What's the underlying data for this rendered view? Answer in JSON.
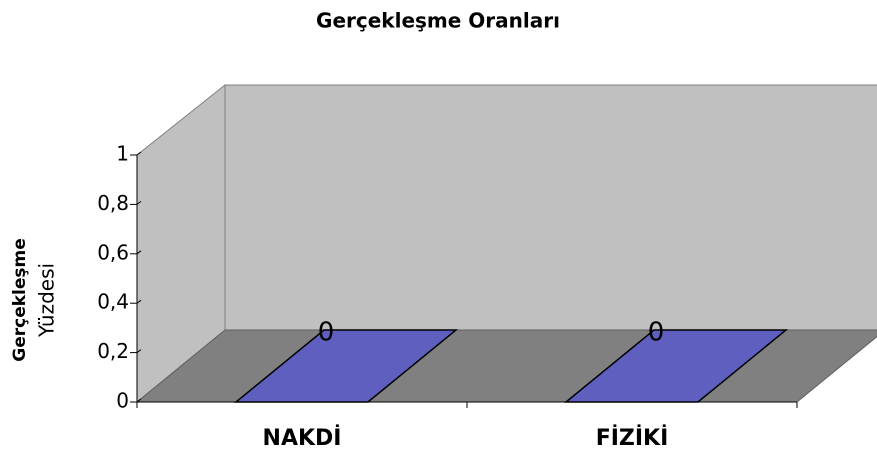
{
  "chart_data": {
    "type": "bar3d",
    "title": "Gerçekleşme Oranları",
    "y_label": [
      "Gerçekleşme",
      "Yüzdesi"
    ],
    "categories": [
      "NAKDİ",
      "FİZİKİ"
    ],
    "values": [
      0,
      0
    ],
    "color": "#5f5fc0",
    "ylim": [
      0,
      1
    ],
    "yticks": [
      0,
      {
        "value": 0.2,
        "label": "0,2"
      },
      {
        "value": 0.4,
        "label": "0,4"
      },
      {
        "value": 0.6,
        "label": "0,6"
      },
      {
        "value": 0.8,
        "label": "0,8"
      },
      1
    ],
    "grid": false
  }
}
